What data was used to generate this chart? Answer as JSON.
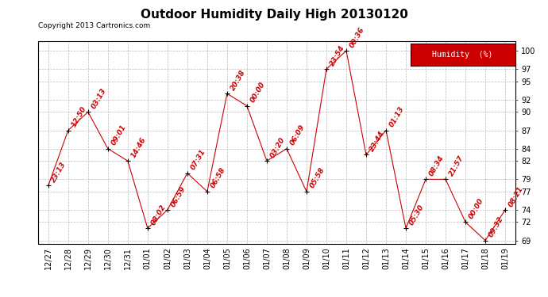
{
  "title": "Outdoor Humidity Daily High 20130120",
  "copyright": "Copyright 2013 Cartronics.com",
  "legend_label": "Humidity  (%)",
  "x_labels": [
    "12/27",
    "12/28",
    "12/29",
    "12/30",
    "12/31",
    "01/01",
    "01/02",
    "01/03",
    "01/04",
    "01/05",
    "01/06",
    "01/07",
    "01/08",
    "01/09",
    "01/10",
    "01/11",
    "01/12",
    "01/13",
    "01/14",
    "01/15",
    "01/16",
    "01/17",
    "01/18",
    "01/19"
  ],
  "y_values": [
    78,
    87,
    90,
    84,
    82,
    71,
    74,
    80,
    77,
    93,
    91,
    82,
    84,
    77,
    97,
    100,
    83,
    87,
    71,
    79,
    79,
    72,
    69,
    74
  ],
  "time_labels": [
    "23:13",
    "12:50",
    "03:13",
    "09:01",
    "14:46",
    "08:02",
    "06:59",
    "07:31",
    "06:58",
    "20:38",
    "00:00",
    "03:20",
    "06:09",
    "05:58",
    "23:54",
    "00:36",
    "23:44",
    "01:13",
    "05:30",
    "08:34",
    "21:57",
    "00:00",
    "09:32",
    "08:21"
  ],
  "ylim": [
    68.5,
    101.5
  ],
  "yticks": [
    69,
    72,
    74,
    77,
    79,
    82,
    84,
    87,
    90,
    92,
    95,
    97,
    100
  ],
  "line_color": "#cc0000",
  "marker_color": "#000000",
  "bg_color": "#ffffff",
  "grid_color": "#bbbbbb",
  "title_fontsize": 11,
  "axis_fontsize": 7,
  "label_fontsize": 6.5,
  "legend_bg": "#cc0000",
  "legend_text_color": "#ffffff"
}
